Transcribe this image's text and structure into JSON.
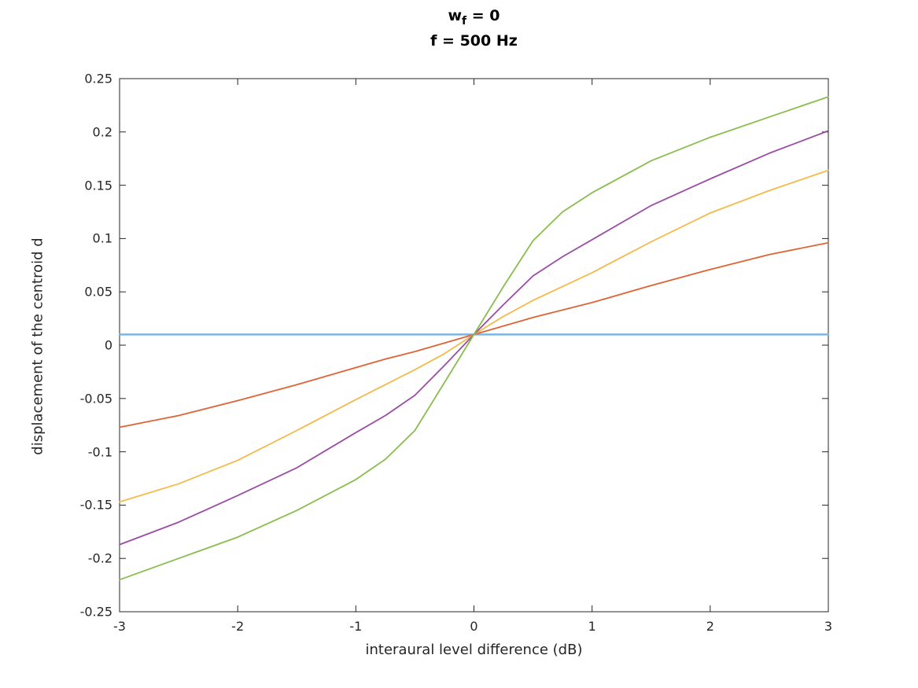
{
  "chart_data": {
    "type": "line",
    "title_line1": {
      "main": "w",
      "sub": "f",
      "tail": " = 0"
    },
    "title_line2": "f = 500 Hz",
    "xlabel": "interaural level difference (dB)",
    "ylabel": "displacement of the centroid d",
    "xlim": [
      -3,
      3
    ],
    "ylim": [
      -0.25,
      0.25
    ],
    "xticks": [
      -3,
      -2,
      -1,
      0,
      1,
      2,
      3
    ],
    "xtick_labels": [
      "-3",
      "-2",
      "-1",
      "0",
      "1",
      "2",
      "3"
    ],
    "yticks": [
      -0.25,
      -0.2,
      -0.15,
      -0.1,
      -0.05,
      0,
      0.05,
      0.1,
      0.15,
      0.2,
      0.25
    ],
    "ytick_labels": [
      "-0.25",
      "-0.2",
      "-0.15",
      "-0.1",
      "-0.05",
      "0",
      "0.05",
      "0.1",
      "0.15",
      "0.2",
      "0.25"
    ],
    "grid": false,
    "legend": "none",
    "axis_color": "#262626",
    "x": [
      -3,
      -2.5,
      -2,
      -1.5,
      -1,
      -0.75,
      -0.5,
      -0.25,
      0,
      0.25,
      0.5,
      0.75,
      1,
      1.5,
      2,
      2.5,
      3
    ],
    "series": [
      {
        "name": "series-1-flat",
        "color": "#7FB5E0",
        "width": 2.5,
        "values": [
          0.01,
          0.01,
          0.01,
          0.01,
          0.01,
          0.01,
          0.01,
          0.01,
          0.01,
          0.01,
          0.01,
          0.01,
          0.01,
          0.01,
          0.01,
          0.01,
          0.01
        ]
      },
      {
        "name": "series-2-shallow",
        "color": "#DE6335",
        "width": 1.8,
        "values": [
          -0.077,
          -0.066,
          -0.052,
          -0.037,
          -0.021,
          -0.013,
          -0.006,
          0.002,
          0.01,
          0.018,
          0.026,
          0.033,
          0.04,
          0.056,
          0.071,
          0.085,
          0.096
        ]
      },
      {
        "name": "series-3-medium",
        "color": "#F3BA4A",
        "width": 1.8,
        "values": [
          -0.147,
          -0.13,
          -0.108,
          -0.08,
          -0.051,
          -0.037,
          -0.023,
          -0.008,
          0.01,
          0.027,
          0.042,
          0.055,
          0.068,
          0.097,
          0.124,
          0.145,
          0.164
        ]
      },
      {
        "name": "series-4-steep",
        "color": "#9B4DA6",
        "width": 1.8,
        "values": [
          -0.187,
          -0.166,
          -0.141,
          -0.115,
          -0.082,
          -0.066,
          -0.047,
          -0.019,
          0.01,
          0.038,
          0.065,
          0.083,
          0.099,
          0.131,
          0.156,
          0.18,
          0.201
        ]
      },
      {
        "name": "series-5-steepest",
        "color": "#8ABD4D",
        "width": 1.8,
        "values": [
          -0.22,
          -0.2,
          -0.18,
          -0.155,
          -0.126,
          -0.107,
          -0.08,
          -0.035,
          0.01,
          0.055,
          0.098,
          0.125,
          0.143,
          0.173,
          0.195,
          0.214,
          0.233
        ]
      }
    ]
  }
}
